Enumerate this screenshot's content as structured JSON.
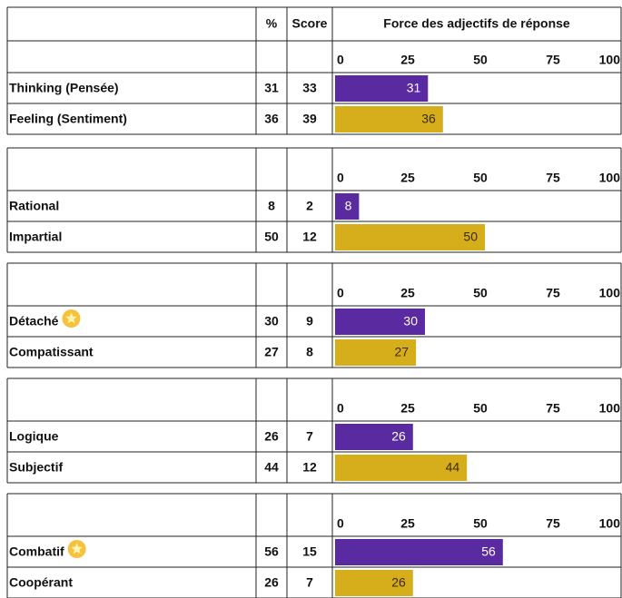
{
  "header": {
    "pct": "%",
    "score": "Score",
    "scale_title": "Force des adjectifs de réponse"
  },
  "scale_ticks": [
    0,
    25,
    50,
    75,
    100
  ],
  "colors": [
    "#5a2aa0",
    "#d6ae1c"
  ],
  "groups": [
    {
      "rows": [
        {
          "label": "Thinking (Pensée)",
          "pct": 31,
          "score": 33
        },
        {
          "label": "Feeling (Sentiment)",
          "pct": 36,
          "score": 39
        }
      ]
    },
    {
      "rows": [
        {
          "label": "Rational",
          "pct": 8,
          "score": 2
        },
        {
          "label": "Impartial",
          "pct": 50,
          "score": 12
        }
      ]
    },
    {
      "rows": [
        {
          "label": "Détaché",
          "pct": 30,
          "score": 9,
          "badge": true
        },
        {
          "label": "Compatissant",
          "pct": 27,
          "score": 8
        }
      ]
    },
    {
      "rows": [
        {
          "label": "Logique",
          "pct": 26,
          "score": 7
        },
        {
          "label": "Subjectif",
          "pct": 44,
          "score": 12
        }
      ]
    },
    {
      "rows": [
        {
          "label": "Combatif",
          "pct": 56,
          "score": 15,
          "badge": true
        },
        {
          "label": "Coopérant",
          "pct": 26,
          "score": 7
        }
      ]
    }
  ]
}
